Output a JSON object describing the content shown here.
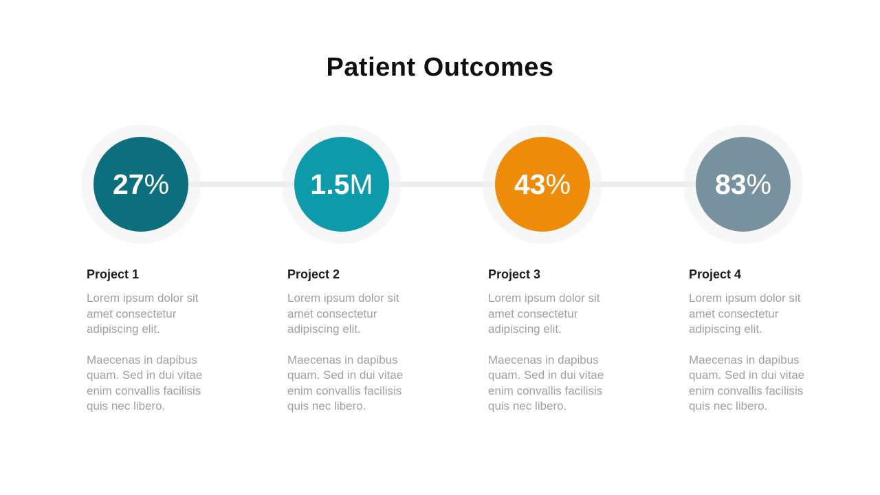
{
  "slide": {
    "title": "Patient Outcomes",
    "colors": {
      "connector": "#ececec",
      "halo": "rgba(240,240,240,0.55)",
      "title_text": "#0f0f0f",
      "heading_text": "#1d1d1d",
      "body_text": "#a0a0a0"
    },
    "items": [
      {
        "value": "27",
        "suffix": "%",
        "circle_color": "#0d6e7e",
        "heading": "Project 1",
        "paragraph1": "Lorem ipsum dolor sit\namet consectetur\nadipiscing elit.",
        "paragraph2": "Maecenas in dapibus\nquam. Sed in dui vitae\nenim convallis facilisis\nquis nec libero."
      },
      {
        "value": "1.5",
        "suffix": "M",
        "circle_color": "#0d9aab",
        "heading": "Project 2",
        "paragraph1": "Lorem ipsum dolor sit\namet consectetur\nadipiscing elit.",
        "paragraph2": "Maecenas in dapibus\nquam. Sed in dui vitae\nenim convallis facilisis\nquis nec libero."
      },
      {
        "value": "43",
        "suffix": "%",
        "circle_color": "#ee8b08",
        "heading": "Project 3",
        "paragraph1": "Lorem ipsum dolor sit\namet consectetur\nadipiscing elit.",
        "paragraph2": "Maecenas in dapibus\nquam. Sed in dui vitae\nenim convallis facilisis\nquis nec libero."
      },
      {
        "value": "83",
        "suffix": "%",
        "circle_color": "#78919e",
        "heading": "Project 4",
        "paragraph1": "Lorem ipsum dolor sit\namet consectetur\nadipiscing elit.",
        "paragraph2": "Maecenas in dapibus\nquam. Sed in dui vitae\nenim convallis facilisis\nquis nec libero."
      }
    ]
  }
}
